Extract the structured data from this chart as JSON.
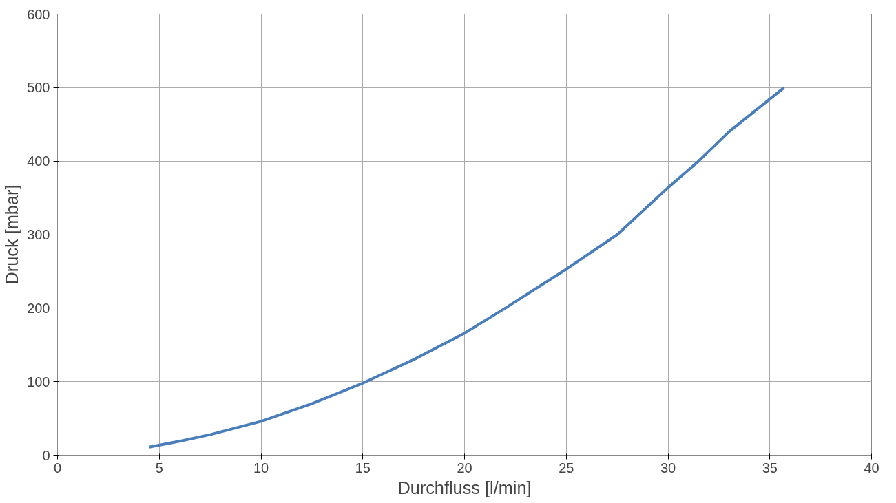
{
  "chart_data": {
    "type": "line",
    "xlabel": "Durchfluss [l/min]",
    "ylabel": "Druck [mbar]",
    "series": [
      {
        "color": "#4a7ebb",
        "x": [
          4.5,
          6,
          7.5,
          10,
          12.5,
          15,
          17.5,
          20,
          22,
          25,
          27.5,
          30,
          31.5,
          33,
          35.7
        ],
        "values": [
          11,
          19,
          28,
          46,
          70,
          98,
          130,
          166,
          200,
          253,
          300,
          364,
          400,
          440,
          500
        ]
      }
    ],
    "xlim": [
      0,
      40
    ],
    "xticks": [
      0,
      5,
      10,
      15,
      20,
      25,
      30,
      35,
      40
    ],
    "ylim": [
      0,
      600
    ],
    "yticks": [
      0,
      100,
      200,
      300,
      400,
      500,
      600
    ],
    "grid": true,
    "marker": "none",
    "line_style": "solid"
  }
}
